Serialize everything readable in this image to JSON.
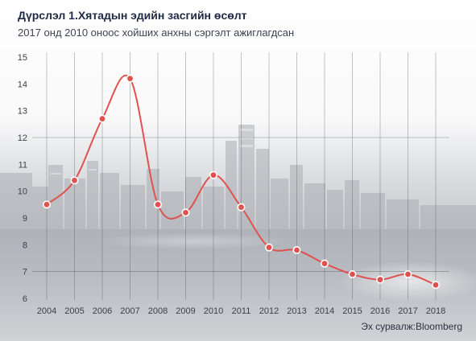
{
  "chart_data": {
    "type": "line",
    "title": "Дүрслэл 1.Хятадын эдийн засгийн өсөлт",
    "subtitle": "2017 онд 2010 оноос хойших анхны сэргэлт ажиглагдсан",
    "source": "Эх сурвалж:Bloomberg",
    "xlabel": "",
    "ylabel": "",
    "categories": [
      "2004",
      "2005",
      "2006",
      "2007",
      "2008",
      "2009",
      "2010",
      "2011",
      "2012",
      "2013",
      "2014",
      "2015",
      "2016",
      "2017",
      "2018"
    ],
    "series": [
      {
        "values": [
          9.5,
          10.4,
          12.7,
          14.2,
          9.5,
          9.2,
          10.6,
          9.4,
          7.9,
          7.8,
          7.3,
          6.9,
          6.7,
          6.9,
          6.5
        ]
      }
    ],
    "yticks": [
      "6",
      "7",
      "8",
      "9",
      "10",
      "11",
      "12",
      "13",
      "14",
      "15"
    ],
    "ylim": [
      6,
      15
    ],
    "grid": "vertical lines at each year, horizontal lines at 7 and 12",
    "legend": "none",
    "line_color": "#e0524f",
    "marker_color": "#e0524f",
    "marker_edge_color": "#ffffff",
    "background": "photo of a city skyline at night, faded"
  }
}
